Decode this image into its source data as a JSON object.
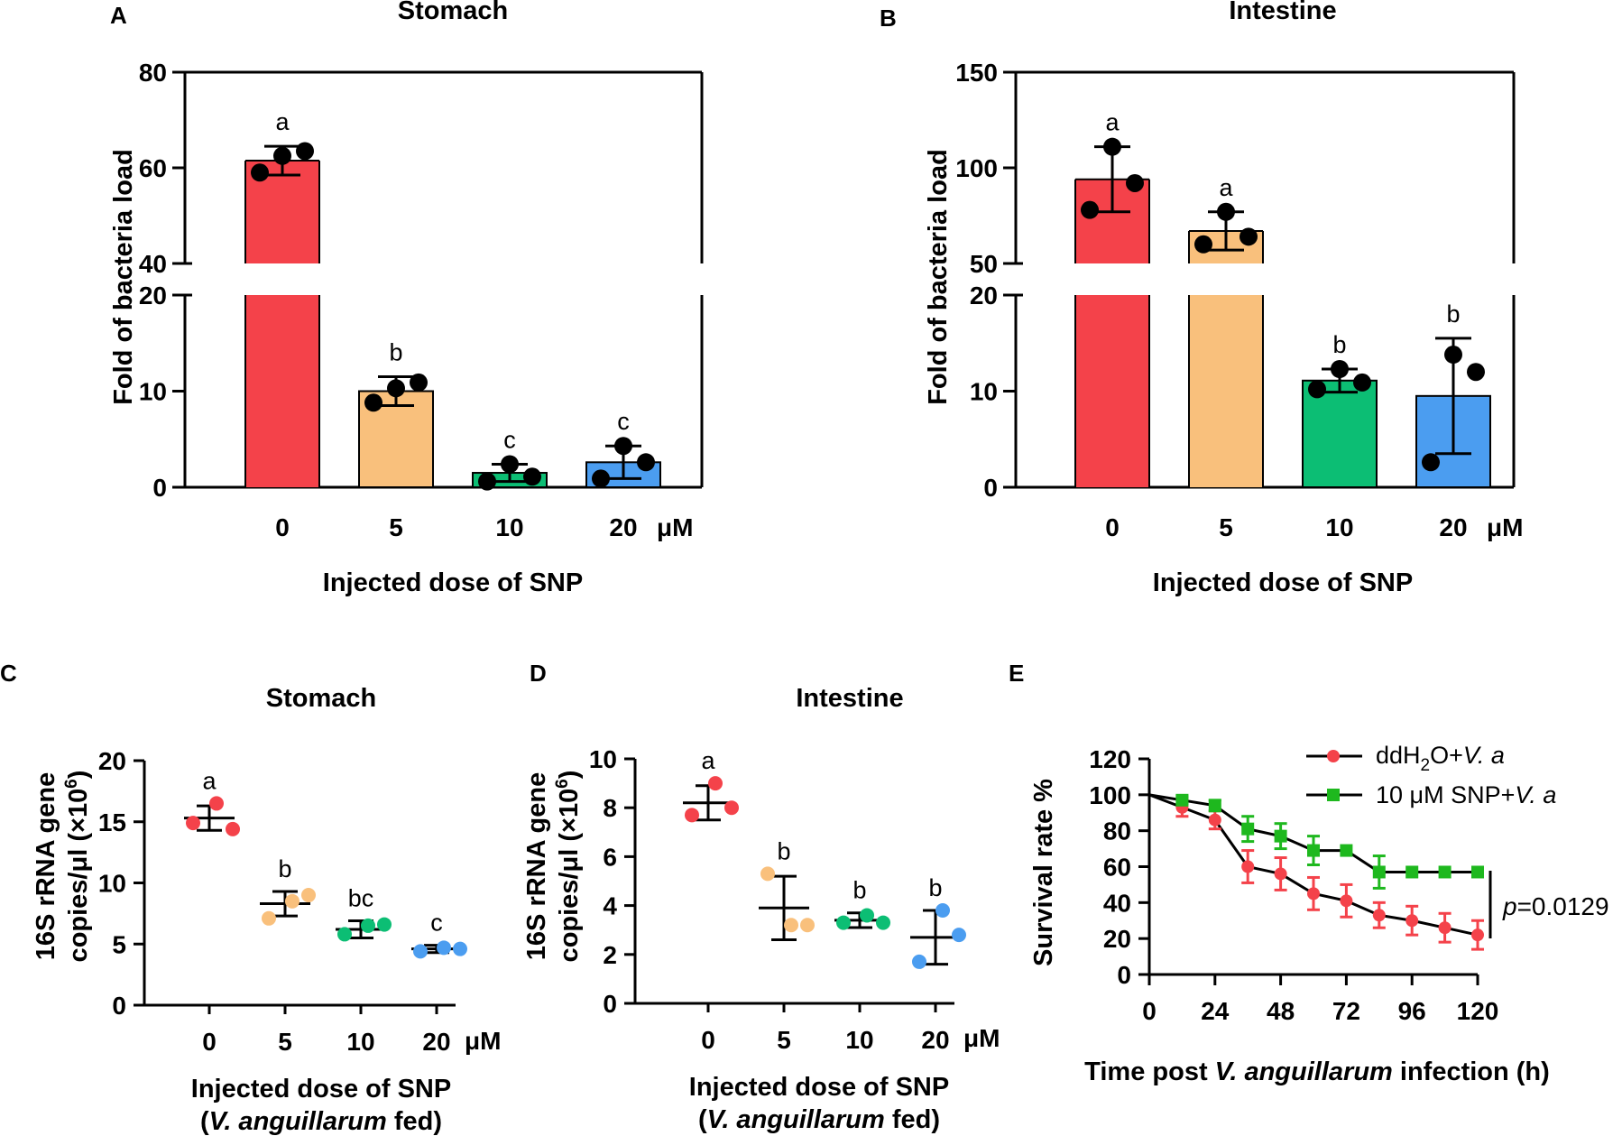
{
  "colors": {
    "red": "#F4424A",
    "orange": "#F9C07C",
    "green": "#0CBE74",
    "blue": "#4B9DF0",
    "survival_green": "#1EB81E",
    "black": "#000000"
  },
  "chart_data": [
    {
      "panel": "A",
      "type": "bar",
      "title": "Stomach",
      "ylabel": "Fold of bacteria load",
      "xlabel": "Injected dose of SNP",
      "unit": "μM",
      "categories": [
        "0",
        "5",
        "10",
        "20"
      ],
      "values": [
        61.5,
        10.0,
        1.5,
        2.6
      ],
      "error": [
        3.0,
        1.5,
        0.9,
        1.7
      ],
      "points": [
        [
          59,
          62.5,
          63.5
        ],
        [
          8.8,
          10.3,
          10.9
        ],
        [
          0.6,
          2.4,
          1.1
        ],
        [
          0.9,
          4.3,
          2.6
        ]
      ],
      "significance": [
        "a",
        "b",
        "c",
        "c"
      ],
      "y_axis_broken": true,
      "lower_segment": {
        "ylim": [
          0,
          20
        ],
        "ticks": [
          "0",
          "10",
          "20"
        ]
      },
      "upper_segment": {
        "ylim": [
          40,
          80
        ],
        "ticks": [
          "40",
          "60",
          "80"
        ]
      }
    },
    {
      "panel": "B",
      "type": "bar",
      "title": "Intestine",
      "ylabel": "Fold of bacteria load",
      "xlabel": "Injected dose of SNP",
      "unit": "μM",
      "categories": [
        "0",
        "5",
        "10",
        "20"
      ],
      "values": [
        94,
        67,
        11.1,
        9.5
      ],
      "error": [
        17,
        10,
        1.2,
        6.0
      ],
      "points": [
        [
          78,
          111,
          92
        ],
        [
          60,
          77,
          64
        ],
        [
          10.2,
          12.3,
          10.9
        ],
        [
          2.6,
          13.8,
          12.0
        ]
      ],
      "significance": [
        "a",
        "a",
        "b",
        "b"
      ],
      "y_axis_broken": true,
      "lower_segment": {
        "ylim": [
          0,
          20
        ],
        "ticks": [
          "0",
          "10",
          "20"
        ]
      },
      "upper_segment": {
        "ylim": [
          50,
          150
        ],
        "ticks": [
          "50",
          "100",
          "150"
        ]
      }
    },
    {
      "panel": "C",
      "type": "scatter",
      "title": "Stomach",
      "ylabel_line1": "16S rRNA gene",
      "ylabel_line2": "copies/μl (×10",
      "ylabel_sup": "6",
      "ylabel_close": ")",
      "xlabel_line1": "Injected dose of SNP",
      "xlabel_open": "(",
      "xlabel_italic": "V. anguillarum",
      "xlabel_rest": " fed)",
      "unit": "μM",
      "categories": [
        "0",
        "5",
        "10",
        "20"
      ],
      "mean": [
        15.3,
        8.3,
        6.2,
        4.6
      ],
      "error": [
        1.0,
        1.0,
        0.7,
        0.3
      ],
      "points": [
        [
          14.9,
          16.5,
          14.4
        ],
        [
          7.1,
          8.5,
          9.0
        ],
        [
          5.8,
          6.5,
          6.6
        ],
        [
          4.4,
          4.7,
          4.6
        ]
      ],
      "significance": [
        "a",
        "b",
        "bc",
        "c"
      ],
      "ylim": [
        0,
        20
      ],
      "yticks": [
        "0",
        "5",
        "10",
        "15",
        "20"
      ]
    },
    {
      "panel": "D",
      "type": "scatter",
      "title": "Intestine",
      "ylabel_line1": "16S rRNA gene",
      "ylabel_line2": "copies/μl (×10",
      "ylabel_sup": "6",
      "ylabel_close": ")",
      "xlabel_line1": "Injected dose of SNP",
      "xlabel_open": "(",
      "xlabel_italic": "V. anguillarum",
      "xlabel_rest": " fed)",
      "unit": "μM",
      "categories": [
        "0",
        "5",
        "10",
        "20"
      ],
      "mean": [
        8.2,
        3.9,
        3.4,
        2.7
      ],
      "error": [
        0.7,
        1.3,
        0.3,
        1.1
      ],
      "points": [
        [
          7.7,
          9.0,
          8.0
        ],
        [
          5.3,
          3.2,
          3.2
        ],
        [
          3.3,
          3.6,
          3.3
        ],
        [
          1.7,
          3.8,
          2.8
        ]
      ],
      "significance": [
        "a",
        "b",
        "b",
        "b"
      ],
      "ylim": [
        0,
        10
      ],
      "yticks": [
        "0",
        "2",
        "4",
        "6",
        "8",
        "10"
      ]
    },
    {
      "panel": "E",
      "type": "line",
      "ylabel": "Survival rate %",
      "xlabel_pre": "Time post ",
      "xlabel_italic": "V. anguillarum",
      "xlabel_post": " infection (h)",
      "xlim": [
        0,
        120
      ],
      "ylim": [
        0,
        120
      ],
      "xticks": [
        "0",
        "24",
        "48",
        "72",
        "96",
        "120"
      ],
      "yticks": [
        "0",
        "20",
        "40",
        "60",
        "80",
        "100",
        "120"
      ],
      "series": [
        {
          "name": "ddH2O+V. a",
          "legend_pre": "ddH",
          "legend_sub": "2",
          "legend_mid": "O+",
          "legend_italic": "V. a",
          "marker": "circle",
          "x": [
            0,
            12,
            24,
            36,
            48,
            60,
            72,
            84,
            96,
            108,
            120
          ],
          "y": [
            100,
            93,
            86,
            60,
            56,
            45,
            41,
            33,
            30,
            26,
            22
          ],
          "error": [
            0,
            5,
            5,
            9,
            9,
            9,
            9,
            7,
            8,
            8,
            8
          ]
        },
        {
          "name": "10 μM SNP+V. a",
          "legend_pre": "10 μM SNP+",
          "legend_italic": "V. a",
          "marker": "square",
          "x": [
            0,
            12,
            24,
            36,
            48,
            60,
            72,
            84,
            96,
            108,
            120
          ],
          "y": [
            100,
            97,
            94,
            81,
            77,
            69,
            69,
            57,
            57,
            57,
            57
          ],
          "error": [
            0,
            2,
            3,
            7,
            7,
            8,
            0,
            9,
            0,
            0,
            0
          ]
        }
      ],
      "annotation_italic": "p",
      "annotation_rest": "=0.0129"
    }
  ]
}
